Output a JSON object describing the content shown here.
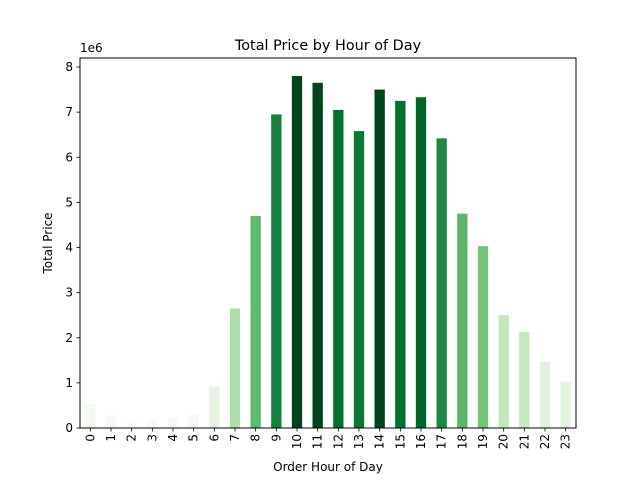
{
  "chart_data": {
    "type": "bar",
    "title": "Total Price by Hour of Day",
    "xlabel": "Order Hour of Day",
    "ylabel": "Total Price",
    "y_multiplier_label": "1e6",
    "categories": [
      "0",
      "1",
      "2",
      "3",
      "4",
      "5",
      "6",
      "7",
      "8",
      "9",
      "10",
      "11",
      "12",
      "13",
      "14",
      "15",
      "16",
      "17",
      "18",
      "19",
      "20",
      "21",
      "22",
      "23"
    ],
    "values": [
      530000,
      280000,
      150000,
      200000,
      230000,
      300000,
      920000,
      2650000,
      4700000,
      6950000,
      7800000,
      7650000,
      7050000,
      6580000,
      7500000,
      7250000,
      7330000,
      6420000,
      4750000,
      4030000,
      2500000,
      2130000,
      1470000,
      1030000
    ],
    "colors": [
      "#f2faf0",
      "#f5fbf3",
      "#f7fcf5",
      "#f6fcf4",
      "#f5fbf3",
      "#f3faf0",
      "#e6f5e1",
      "#addea7",
      "#5db96b",
      "#17813d",
      "#00441b",
      "#00441b",
      "#05712f",
      "#0c7735",
      "#00441b",
      "#02702e",
      "#006328",
      "#1e8742",
      "#5bb86a",
      "#73c476",
      "#c4e8bd",
      "#c7e9c0",
      "#dff3da",
      "#e4f5df"
    ],
    "ylim": [
      0,
      8200000
    ],
    "y_ticks": [
      0,
      1000000,
      2000000,
      3000000,
      4000000,
      5000000,
      6000000,
      7000000,
      8000000
    ],
    "y_tick_labels": [
      "0",
      "1",
      "2",
      "3",
      "4",
      "5",
      "6",
      "7",
      "8"
    ],
    "grid": false,
    "legend": "none"
  }
}
